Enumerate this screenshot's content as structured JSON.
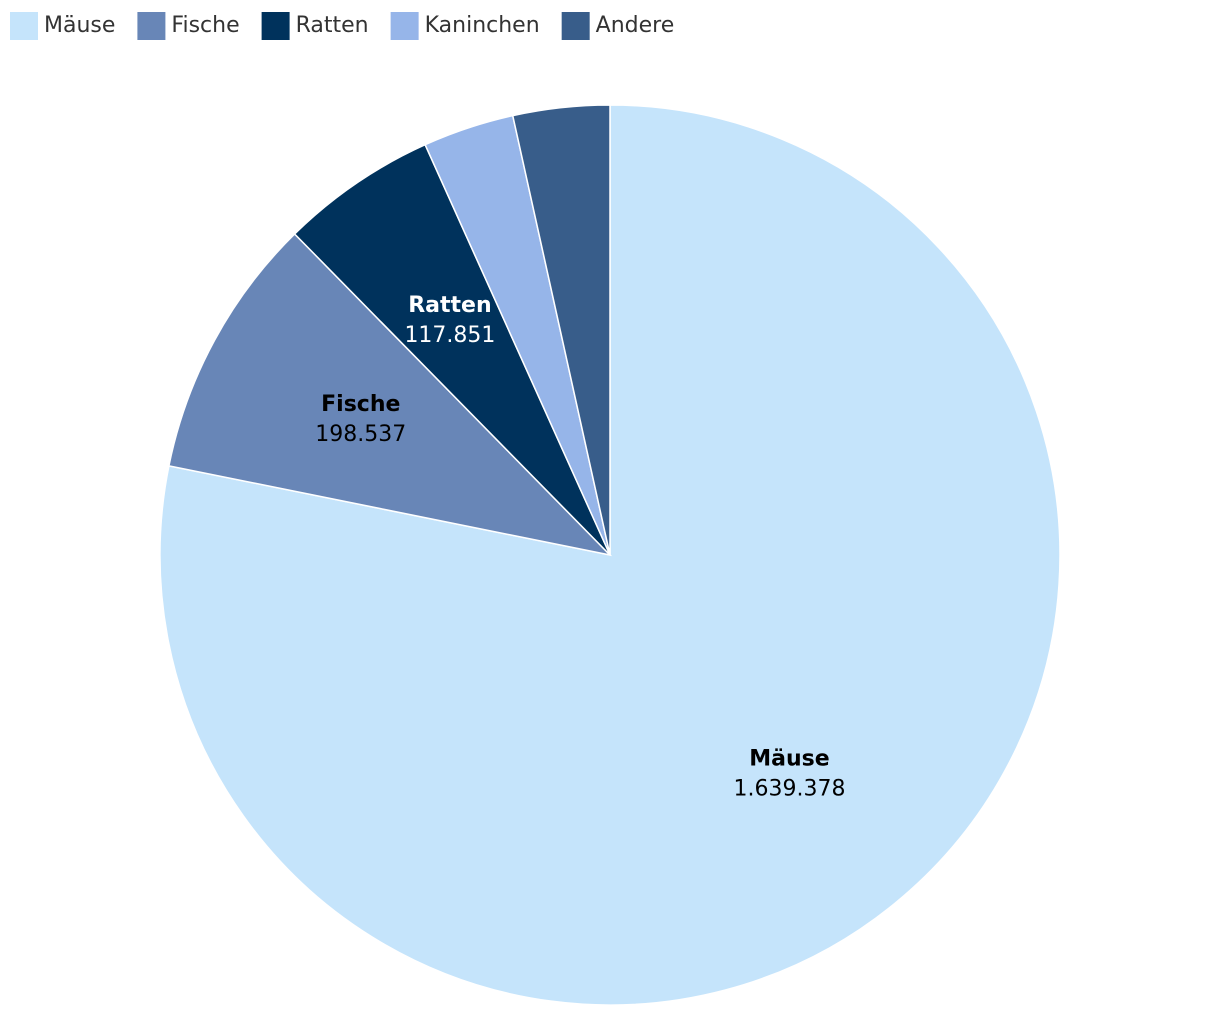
{
  "chart_data": {
    "type": "pie",
    "categories": [
      "Mäuse",
      "Fische",
      "Ratten",
      "Kaninchen",
      "Andere"
    ],
    "values": [
      1639378,
      198537,
      117851,
      68600,
      72700
    ],
    "value_labels": [
      "1.639.378",
      "198.537",
      "117.851",
      null,
      null
    ],
    "colors": [
      "#c5e4fb",
      "#6886b7",
      "#00325c",
      "#96b5e9",
      "#385d8a"
    ],
    "legend": "top-left"
  }
}
